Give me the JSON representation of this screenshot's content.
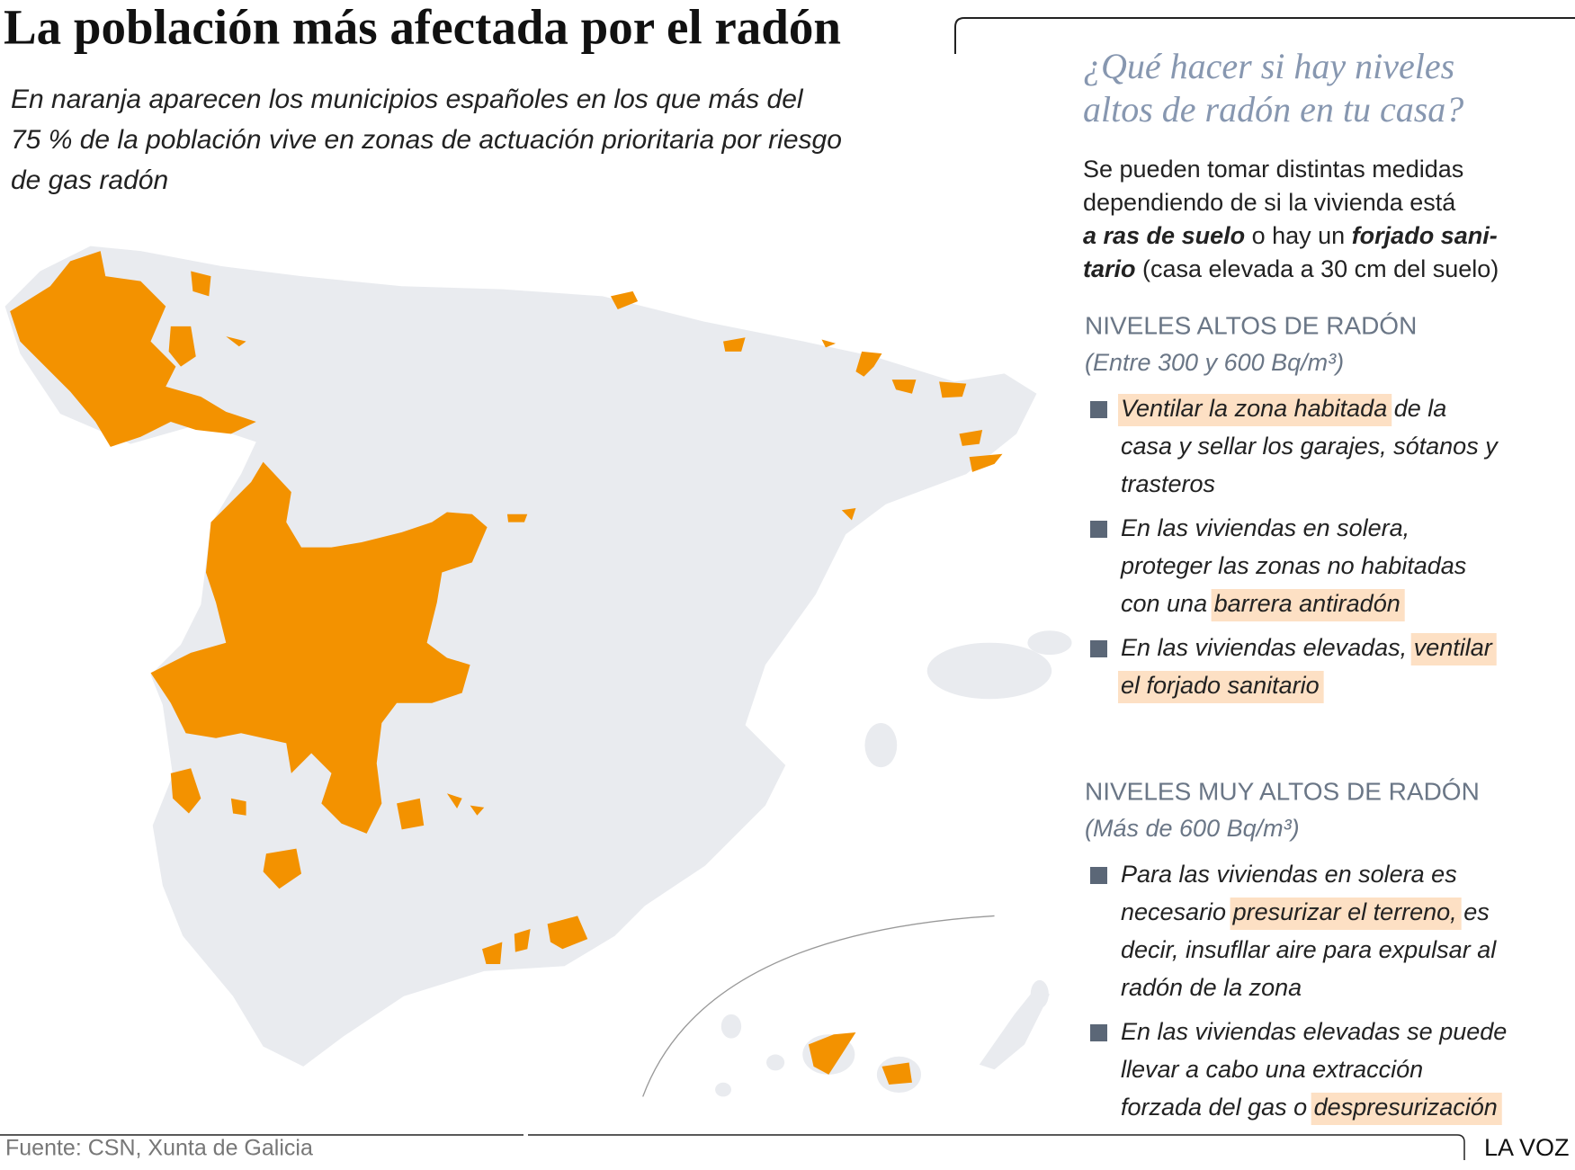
{
  "title": "La población más afectada por el radón",
  "subtitle": [
    "En naranja aparecen los municipios españoles en los que más del",
    "75 % de la población vive en zonas de actuación prioritaria por riesgo",
    "de gas radón"
  ],
  "sidebar": {
    "heading": [
      "¿Qué hacer si hay niveles",
      "altos de radón en tu casa?"
    ],
    "intro": [
      [
        {
          "text": "Se pueden tomar distintas medidas"
        }
      ],
      [
        {
          "text": "dependiendo de si la vivienda está"
        }
      ],
      [
        {
          "text": "a ras de suelo",
          "bold": true
        },
        {
          "text": " o hay un "
        },
        {
          "text": "forjado sani-",
          "bold": true
        }
      ],
      [
        {
          "text": "tario",
          "bold": true
        },
        {
          "text": " (casa elevada a 30 cm del suelo)"
        }
      ]
    ],
    "sections": [
      {
        "title": "NIVELES ALTOS DE RADÓN",
        "note": "(Entre 300 y 600 Bq/m³)",
        "bullets": [
          [
            [
              {
                "text": "Ventilar la zona habitada",
                "highlight": true
              },
              {
                "text": " de la"
              }
            ],
            [
              {
                "text": "casa y sellar los garajes, sótanos y"
              }
            ],
            [
              {
                "text": "trasteros"
              }
            ]
          ],
          [
            [
              {
                "text": "En las viviendas en solera,"
              }
            ],
            [
              {
                "text": "proteger las zonas no habitadas"
              }
            ],
            [
              {
                "text": "con una "
              },
              {
                "text": "barrera antiradón",
                "highlight": true
              }
            ]
          ],
          [
            [
              {
                "text": "En las viviendas elevadas, "
              },
              {
                "text": "ventilar",
                "highlight": true
              }
            ],
            [
              {
                "text": "el forjado sanitario",
                "highlight": true
              }
            ]
          ]
        ]
      },
      {
        "title": "NIVELES MUY ALTOS DE RADÓN",
        "note": "(Más de 600 Bq/m³)",
        "bullets": [
          [
            [
              {
                "text": "Para las viviendas en solera es"
              }
            ],
            [
              {
                "text": "necesario "
              },
              {
                "text": "presurizar el terreno,",
                "highlight": true
              },
              {
                "text": " es"
              }
            ],
            [
              {
                "text": "decir, insufllar aire para expulsar al"
              }
            ],
            [
              {
                "text": "radón de la zona"
              }
            ]
          ],
          [
            [
              {
                "text": "En las viviendas elevadas se puede"
              }
            ],
            [
              {
                "text": "llevar a cabo una extracción"
              }
            ],
            [
              {
                "text": "forzada del gas o "
              },
              {
                "text": "despresurización",
                "highlight": true
              }
            ]
          ]
        ]
      }
    ]
  },
  "source": "Fuente: CSN, Xunta de Galicia",
  "brand": "LA VOZ"
}
